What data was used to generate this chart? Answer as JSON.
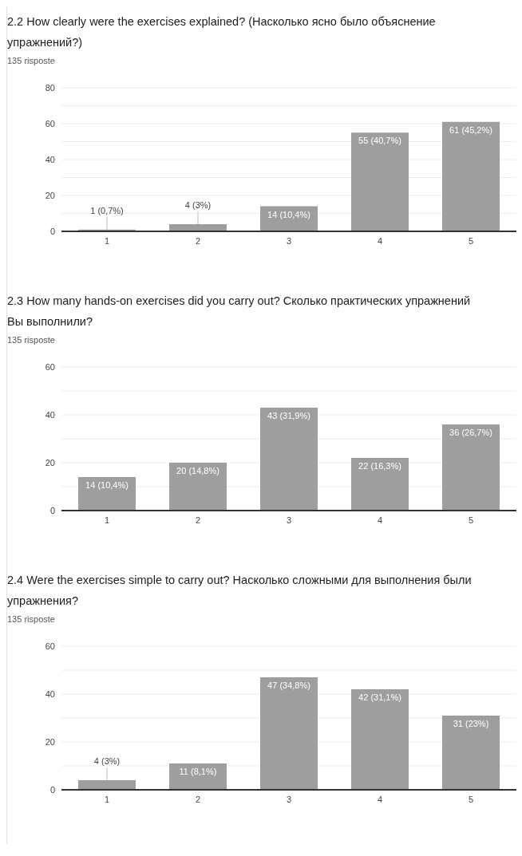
{
  "chart_data": [
    {
      "type": "bar",
      "title": "2.2 How clearly were the exercises explained? (Насколько ясно было объяснение упражнений?)",
      "subtitle": "135 risposte",
      "categories": [
        "1",
        "2",
        "3",
        "4",
        "5"
      ],
      "values": [
        1,
        4,
        14,
        55,
        61
      ],
      "value_labels": [
        "1 (0,7%)",
        "4 (3%)",
        "14 (10,4%)",
        "55 (40,7%)",
        "61 (45,2%)"
      ],
      "color": "#9e9e9e",
      "ylim": [
        0,
        80
      ],
      "yticks": [
        0,
        {
          "value": 10,
          "label": null
        },
        20,
        {
          "value": 30,
          "label": null
        },
        40,
        {
          "value": 50,
          "label": null
        },
        60,
        {
          "value": 70,
          "label": null
        },
        80
      ],
      "grid": "y",
      "legend": false
    },
    {
      "type": "bar",
      "title": "2.3 How many hands-on exercises did you carry out? Сколько практических упражнений Вы выполнили?",
      "subtitle": "135 risposte",
      "categories": [
        "1",
        "2",
        "3",
        "4",
        "5"
      ],
      "values": [
        14,
        20,
        43,
        22,
        36
      ],
      "value_labels": [
        "14 (10,4%)",
        "20 (14,8%)",
        "43 (31,9%)",
        "22 (16,3%)",
        "36 (26,7%)"
      ],
      "color": "#9e9e9e",
      "ylim": [
        0,
        60
      ],
      "yticks": [
        0,
        {
          "value": 10,
          "label": null
        },
        20,
        {
          "value": 30,
          "label": null
        },
        40,
        {
          "value": 50,
          "label": null
        },
        60
      ],
      "grid": "y",
      "legend": false
    },
    {
      "type": "bar",
      "title": "2.4 Were the exercises simple to carry out? Насколько сложными для выполнения были упражнения?",
      "subtitle": "135 risposte",
      "categories": [
        "1",
        "2",
        "3",
        "4",
        "5"
      ],
      "values": [
        4,
        11,
        47,
        42,
        31
      ],
      "value_labels": [
        "4 (3%)",
        "11 (8,1%)",
        "47 (34,8%)",
        "42 (31,1%)",
        "31 (23%)"
      ],
      "color": "#9e9e9e",
      "ylim": [
        0,
        60
      ],
      "yticks": [
        0,
        {
          "value": 10,
          "label": null
        },
        20,
        {
          "value": 30,
          "label": null
        },
        40,
        {
          "value": 50,
          "label": null
        },
        60
      ],
      "grid": "y",
      "legend": false
    }
  ]
}
